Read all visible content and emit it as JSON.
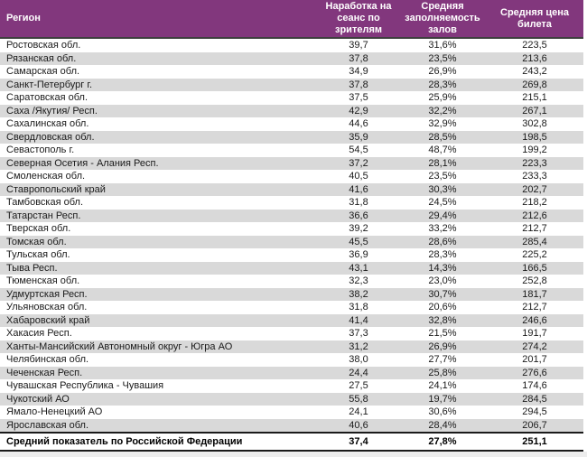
{
  "colors": {
    "header_bg": "#82377D",
    "header_text": "#ffffff",
    "stripe": "#D9D9D9",
    "row_text": "#1a1a1a",
    "border_dark": "#1a1a1a",
    "header_border": "#3F3F3F",
    "bottom_strip": "#EDEDED"
  },
  "table": {
    "columns": [
      {
        "id": "region",
        "label": "Регион"
      },
      {
        "id": "per_session",
        "label": "Наработка на сеанс по зрителям"
      },
      {
        "id": "occupancy",
        "label": "Средняя заполняемость залов"
      },
      {
        "id": "price",
        "label": "Средняя цена билета"
      }
    ],
    "rows": [
      {
        "region": "Ростовская обл.",
        "per_session": "39,7",
        "occupancy": "31,6%",
        "price": "223,5"
      },
      {
        "region": "Рязанская обл.",
        "per_session": "37,8",
        "occupancy": "23,5%",
        "price": "213,6"
      },
      {
        "region": "Самарская обл.",
        "per_session": "34,9",
        "occupancy": "26,9%",
        "price": "243,2"
      },
      {
        "region": "Санкт-Петербург г.",
        "per_session": "37,8",
        "occupancy": "28,3%",
        "price": "269,8"
      },
      {
        "region": "Саратовская обл.",
        "per_session": "37,5",
        "occupancy": "25,9%",
        "price": "215,1"
      },
      {
        "region": "Саха /Якутия/ Респ.",
        "per_session": "42,9",
        "occupancy": "32,2%",
        "price": "267,1"
      },
      {
        "region": "Сахалинская обл.",
        "per_session": "44,6",
        "occupancy": "32,9%",
        "price": "302,8"
      },
      {
        "region": "Свердловская обл.",
        "per_session": "35,9",
        "occupancy": "28,5%",
        "price": "198,5"
      },
      {
        "region": "Севастополь г.",
        "per_session": "54,5",
        "occupancy": "48,7%",
        "price": "199,2"
      },
      {
        "region": "Северная Осетия - Алания Респ.",
        "per_session": "37,2",
        "occupancy": "28,1%",
        "price": "223,3"
      },
      {
        "region": "Смоленская обл.",
        "per_session": "40,5",
        "occupancy": "23,5%",
        "price": "233,3"
      },
      {
        "region": "Ставропольский край",
        "per_session": "41,6",
        "occupancy": "30,3%",
        "price": "202,7"
      },
      {
        "region": "Тамбовская обл.",
        "per_session": "31,8",
        "occupancy": "24,5%",
        "price": "218,2"
      },
      {
        "region": "Татарстан Респ.",
        "per_session": "36,6",
        "occupancy": "29,4%",
        "price": "212,6"
      },
      {
        "region": "Тверская обл.",
        "per_session": "39,2",
        "occupancy": "33,2%",
        "price": "212,7"
      },
      {
        "region": "Томская обл.",
        "per_session": "45,5",
        "occupancy": "28,6%",
        "price": "285,4"
      },
      {
        "region": "Тульская обл.",
        "per_session": "36,9",
        "occupancy": "28,3%",
        "price": "225,2"
      },
      {
        "region": "Тыва Респ.",
        "per_session": "43,1",
        "occupancy": "14,3%",
        "price": "166,5"
      },
      {
        "region": "Тюменская обл.",
        "per_session": "32,3",
        "occupancy": "23,0%",
        "price": "252,8"
      },
      {
        "region": "Удмуртская Респ.",
        "per_session": "38,2",
        "occupancy": "30,7%",
        "price": "181,7"
      },
      {
        "region": "Ульяновская обл.",
        "per_session": "31,8",
        "occupancy": "20,6%",
        "price": "212,7"
      },
      {
        "region": "Хабаровский край",
        "per_session": "41,4",
        "occupancy": "32,8%",
        "price": "246,6"
      },
      {
        "region": "Хакасия Респ.",
        "per_session": "37,3",
        "occupancy": "21,5%",
        "price": "191,7"
      },
      {
        "region": "Ханты-Мансийский Автономный округ - Югра АО",
        "per_session": "31,2",
        "occupancy": "26,9%",
        "price": "274,2"
      },
      {
        "region": "Челябинская обл.",
        "per_session": "38,0",
        "occupancy": "27,7%",
        "price": "201,7"
      },
      {
        "region": "Чеченская Респ.",
        "per_session": "24,4",
        "occupancy": "25,8%",
        "price": "276,6"
      },
      {
        "region": "Чувашская Республика - Чувашия",
        "per_session": "27,5",
        "occupancy": "24,1%",
        "price": "174,6"
      },
      {
        "region": "Чукотский АО",
        "per_session": "55,8",
        "occupancy": "19,7%",
        "price": "284,5"
      },
      {
        "region": "Ямало-Ненецкий АО",
        "per_session": "24,1",
        "occupancy": "30,6%",
        "price": "294,5"
      },
      {
        "region": "Ярославская обл.",
        "per_session": "40,6",
        "occupancy": "28,4%",
        "price": "206,7"
      }
    ],
    "footer": {
      "region": "Средний показатель по Российской Федерации",
      "per_session": "37,4",
      "occupancy": "27,8%",
      "price": "251,1"
    }
  }
}
